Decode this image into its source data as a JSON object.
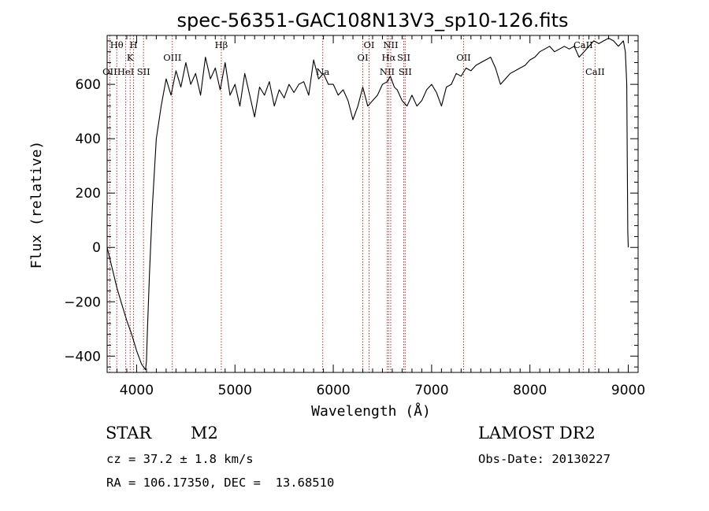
{
  "chart_data": {
    "type": "line",
    "title": "spec-56351-GAC108N13V3_sp10-126.fits",
    "xlabel": "Wavelength (Å)",
    "ylabel": "Flux (relative)",
    "xlim": [
      3700,
      9100
    ],
    "ylim": [
      -460,
      780
    ],
    "x_ticks": [
      4000,
      5000,
      6000,
      7000,
      8000,
      9000
    ],
    "x_tick_labels": [
      "4000",
      "5000",
      "6000",
      "7000",
      "8000",
      "9000"
    ],
    "y_ticks": [
      -400,
      -200,
      0,
      200,
      400,
      600
    ],
    "y_tick_labels": [
      "−400",
      "−200",
      "0",
      "200",
      "400",
      "600"
    ],
    "grid": false,
    "series": [
      {
        "color": "#000000",
        "x": [
          3700,
          3720,
          3760,
          3800,
          3850,
          3900,
          3950,
          4000,
          4050,
          4090,
          4100,
          4110,
          4130,
          4160,
          4200,
          4250,
          4300,
          4350,
          4400,
          4450,
          4500,
          4550,
          4600,
          4650,
          4700,
          4750,
          4800,
          4850,
          4900,
          4950,
          5000,
          5050,
          5100,
          5150,
          5200,
          5250,
          5300,
          5350,
          5400,
          5450,
          5500,
          5550,
          5600,
          5650,
          5700,
          5750,
          5800,
          5850,
          5900,
          5950,
          6000,
          6050,
          6100,
          6150,
          6200,
          6250,
          6300,
          6350,
          6400,
          6450,
          6500,
          6550,
          6580,
          6620,
          6650,
          6700,
          6750,
          6800,
          6850,
          6900,
          6950,
          7000,
          7050,
          7100,
          7150,
          7200,
          7250,
          7300,
          7350,
          7400,
          7450,
          7500,
          7550,
          7600,
          7650,
          7700,
          7750,
          7800,
          7850,
          7900,
          7950,
          8000,
          8050,
          8100,
          8150,
          8200,
          8250,
          8300,
          8350,
          8400,
          8450,
          8500,
          8550,
          8600,
          8650,
          8700,
          8750,
          8800,
          8850,
          8900,
          8950,
          8970,
          8985,
          8990,
          8995,
          9000
        ],
        "y": [
          0,
          -30,
          -90,
          -150,
          -210,
          -270,
          -320,
          -380,
          -430,
          -450,
          -420,
          -300,
          -100,
          150,
          400,
          520,
          620,
          560,
          650,
          590,
          680,
          600,
          640,
          560,
          700,
          620,
          660,
          580,
          680,
          560,
          600,
          520,
          640,
          560,
          480,
          590,
          560,
          610,
          520,
          580,
          550,
          600,
          570,
          600,
          610,
          560,
          690,
          620,
          640,
          600,
          600,
          560,
          580,
          540,
          470,
          520,
          590,
          520,
          540,
          560,
          600,
          610,
          630,
          590,
          580,
          540,
          520,
          560,
          520,
          540,
          580,
          600,
          570,
          520,
          590,
          600,
          640,
          630,
          660,
          650,
          670,
          680,
          690,
          700,
          660,
          600,
          620,
          640,
          650,
          660,
          670,
          690,
          700,
          720,
          730,
          740,
          720,
          730,
          740,
          730,
          740,
          700,
          720,
          740,
          760,
          750,
          760,
          770,
          760,
          740,
          760,
          720,
          600,
          300,
          60,
          0
        ]
      }
    ],
    "line_markers": [
      {
        "wavelength": 3727,
        "label": "OII",
        "row": 3
      },
      {
        "wavelength": 3798,
        "label": "Hθ",
        "row": 1
      },
      {
        "wavelength": 3889,
        "label": "HeI",
        "row": 3
      },
      {
        "wavelength": 3934,
        "label": "K",
        "row": 2
      },
      {
        "wavelength": 3969,
        "label": "H",
        "row": 1
      },
      {
        "wavelength": 4070,
        "label": "SII",
        "row": 3
      },
      {
        "wavelength": 4363,
        "label": "OIII",
        "row": 2
      },
      {
        "wavelength": 4861,
        "label": "Hβ",
        "row": 1
      },
      {
        "wavelength": 5893,
        "label": "Na",
        "row": 3
      },
      {
        "wavelength": 6300,
        "label": "OI",
        "row": 2
      },
      {
        "wavelength": 6364,
        "label": "OI",
        "row": 1
      },
      {
        "wavelength": 6548,
        "label": "NII",
        "row": 3
      },
      {
        "wavelength": 6563,
        "label": "Hα",
        "row": 2
      },
      {
        "wavelength": 6584,
        "label": "NII",
        "row": 1
      },
      {
        "wavelength": 6717,
        "label": "SII",
        "row": 2
      },
      {
        "wavelength": 6731,
        "label": "SII",
        "row": 3
      },
      {
        "wavelength": 7325,
        "label": "OII",
        "row": 2
      },
      {
        "wavelength": 8542,
        "label": "CaII",
        "row": 1
      },
      {
        "wavelength": 8662,
        "label": "CaII",
        "row": 3
      }
    ],
    "marker_color": "#b03030"
  },
  "info": {
    "object_class": "STAR",
    "subclass": "M2",
    "survey": "LAMOST DR2",
    "redshift": "cz = 37.2 ± 1.8 km/s",
    "obs_date": "Obs-Date: 20130227",
    "coords": "RA = 106.17350, DEC =  13.68510"
  }
}
